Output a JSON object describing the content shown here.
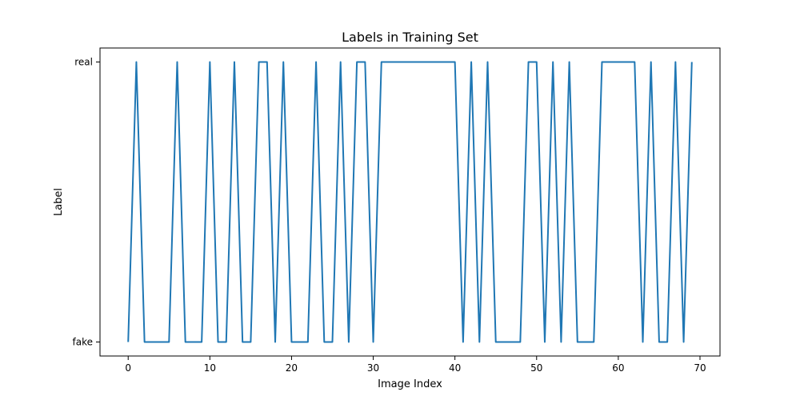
{
  "chart_data": {
    "type": "line",
    "title": "Labels in Training Set",
    "xlabel": "Image Index",
    "ylabel": "Label",
    "xlim": [
      -3.45,
      72.45
    ],
    "x_ticks": [
      0,
      10,
      20,
      30,
      40,
      50,
      60,
      70
    ],
    "y_categories": [
      "fake",
      "real"
    ],
    "grid": false,
    "series": [
      {
        "color": "#1f77b4",
        "x": [
          0,
          1,
          2,
          3,
          4,
          5,
          6,
          7,
          8,
          9,
          10,
          11,
          12,
          13,
          14,
          15,
          16,
          17,
          18,
          19,
          20,
          21,
          22,
          23,
          24,
          25,
          26,
          27,
          28,
          29,
          30,
          31,
          32,
          33,
          34,
          35,
          36,
          37,
          38,
          39,
          40,
          41,
          42,
          43,
          44,
          45,
          46,
          47,
          48,
          49,
          50,
          51,
          52,
          53,
          54,
          55,
          56,
          57,
          58,
          59,
          60,
          61,
          62,
          63,
          64,
          65,
          66,
          67,
          68,
          69
        ],
        "values": [
          "fake",
          "real",
          "fake",
          "fake",
          "fake",
          "fake",
          "real",
          "fake",
          "fake",
          "fake",
          "real",
          "fake",
          "fake",
          "real",
          "fake",
          "fake",
          "real",
          "real",
          "fake",
          "real",
          "fake",
          "fake",
          "fake",
          "real",
          "fake",
          "fake",
          "real",
          "fake",
          "real",
          "real",
          "fake",
          "real",
          "real",
          "real",
          "real",
          "real",
          "real",
          "real",
          "real",
          "real",
          "real",
          "fake",
          "real",
          "fake",
          "real",
          "fake",
          "fake",
          "fake",
          "fake",
          "real",
          "real",
          "fake",
          "real",
          "fake",
          "real",
          "fake",
          "fake",
          "fake",
          "real",
          "real",
          "real",
          "real",
          "real",
          "fake",
          "real",
          "fake",
          "fake",
          "real",
          "fake",
          "real"
        ]
      }
    ]
  }
}
